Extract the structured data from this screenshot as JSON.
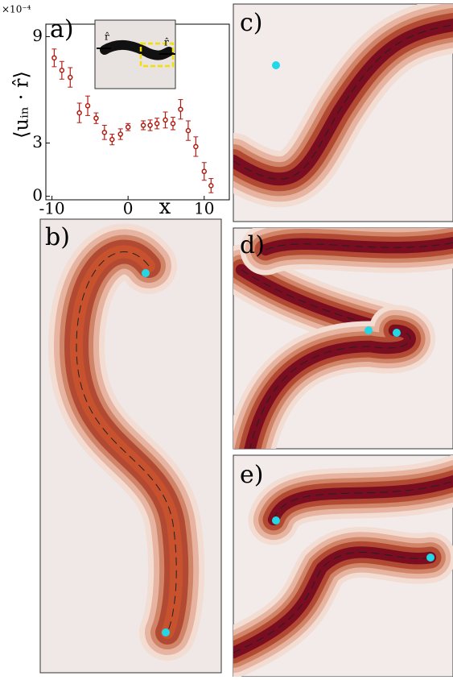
{
  "chart_data": {
    "type": "scatter",
    "xlabel": "x",
    "ylabel": "⟨uᵢₙ · r̂⟩",
    "exponent_label": "×10⁻⁴",
    "x": [
      -9.7,
      -8.7,
      -7.6,
      -6.4,
      -5.3,
      -4.2,
      -3.1,
      -2.1,
      -1.0,
      0.0,
      2.0,
      2.9,
      3.8,
      4.9,
      5.9,
      6.9,
      7.9,
      8.9,
      10.0,
      10.9
    ],
    "series": [
      {
        "color": "#b01a10",
        "values": [
          7.8,
          7.1,
          6.7,
          4.7,
          5.1,
          4.4,
          3.6,
          3.2,
          3.5,
          3.9,
          4.0,
          4.0,
          4.1,
          4.3,
          4.1,
          4.9,
          3.7,
          2.8,
          1.4,
          0.6
        ],
        "errors": [
          0.5,
          0.5,
          0.55,
          0.55,
          0.55,
          0.3,
          0.4,
          0.3,
          0.3,
          0.2,
          0.25,
          0.3,
          0.3,
          0.45,
          0.35,
          0.55,
          0.55,
          0.55,
          0.5,
          0.4
        ]
      }
    ],
    "xlim": [
      -10.8,
      13.3
    ],
    "ylim": [
      -0.2,
      9.7
    ],
    "xticks": [
      -10,
      0,
      10
    ],
    "yticks": [
      0,
      3,
      9
    ],
    "inset_labels": [
      "r̂",
      "r̂"
    ]
  },
  "panels": [
    "a)",
    "b)",
    "c)",
    "d)",
    "e)"
  ]
}
